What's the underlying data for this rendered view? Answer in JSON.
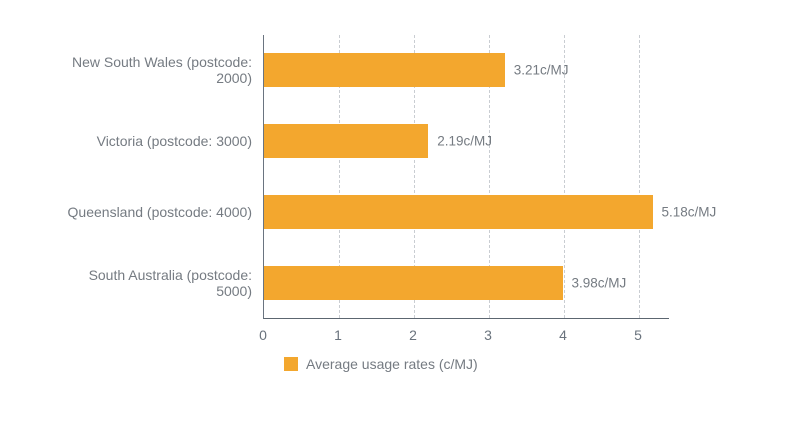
{
  "chart_data": {
    "type": "bar",
    "orientation": "horizontal",
    "categories": [
      "New South Wales (postcode: 2000)",
      "Victoria (postcode: 3000)",
      "Queensland (postcode: 4000)",
      "South Australia (postcode: 5000)"
    ],
    "values": [
      3.21,
      2.19,
      5.18,
      3.98
    ],
    "value_labels": [
      "3.21c/MJ",
      "2.19c/MJ",
      "5.18c/MJ",
      "3.98c/MJ"
    ],
    "title": "",
    "xlabel": "",
    "ylabel": "",
    "x_ticks": [
      0,
      1,
      2,
      3,
      4,
      5
    ],
    "xlim": [
      0,
      5.4
    ],
    "grid": "dashed-vertical",
    "legend_position": "bottom-left",
    "bar_color": "#F3A72E"
  },
  "legend": {
    "label": "Average usage rates (c/MJ)"
  },
  "colors": {
    "bar": "#F3A72E",
    "text": "#757B82",
    "axis_line": "#5C6670",
    "gridline": "#C9CDD2",
    "background": "#FFFFFF"
  }
}
